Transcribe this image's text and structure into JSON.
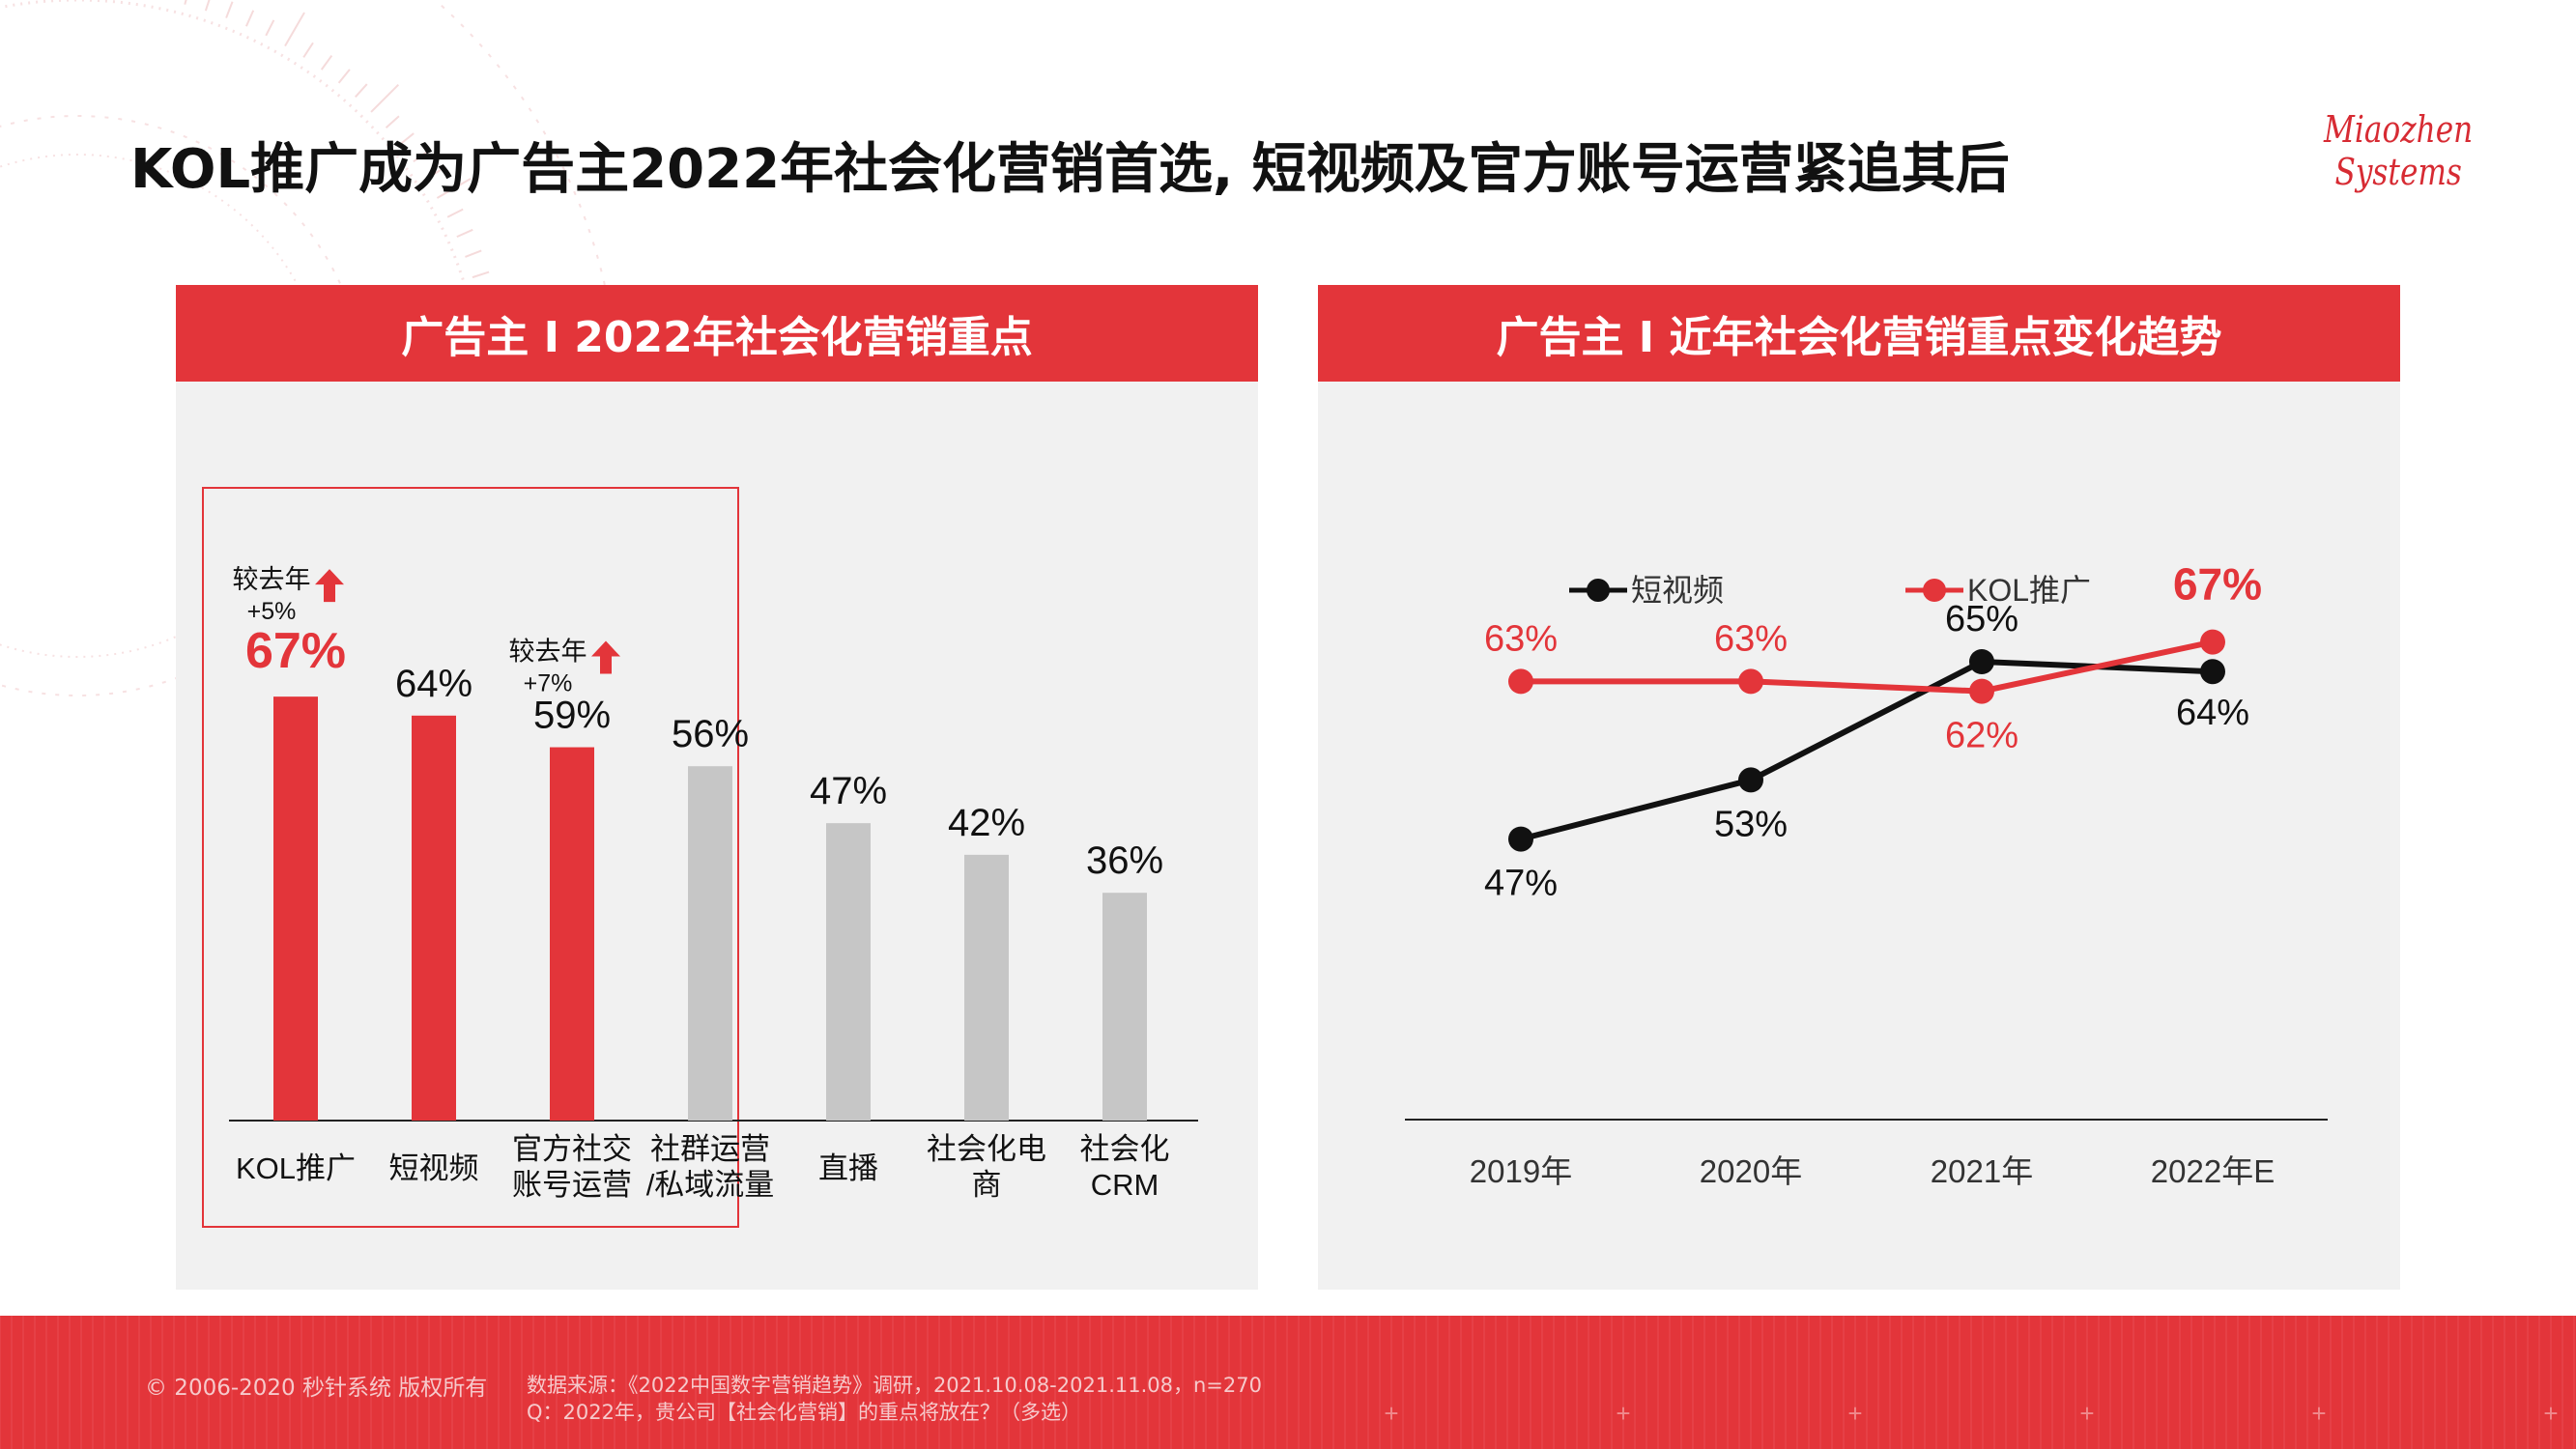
{
  "title": "KOL推广成为广告主2022年社会化营销首选, 短视频及官方账号运营紧追其后",
  "logo": {
    "line1": "Miaozhen",
    "line2": "Systems"
  },
  "colors": {
    "accent": "#e3353a",
    "gray_bar": "#c6c6c6",
    "black_line": "#111111"
  },
  "left_panel": {
    "header": "广告主 I 2022年社会化营销重点"
  },
  "right_panel": {
    "header": "广告主 I 近年社会化营销重点变化趋势"
  },
  "chart_data": [
    {
      "type": "bar",
      "categories": [
        "KOL推广",
        "短视频",
        "官方社交账号运营",
        "社群运营/私域流量",
        "直播",
        "社会化电商",
        "社会化CRM"
      ],
      "category_lines": [
        [
          "KOL推广"
        ],
        [
          "短视频"
        ],
        [
          "官方社交",
          "账号运营"
        ],
        [
          "社群运营",
          "/私域流量"
        ],
        [
          "直播"
        ],
        [
          "社会化电",
          "商"
        ],
        [
          "社会化",
          "CRM"
        ]
      ],
      "values": [
        67,
        64,
        59,
        56,
        47,
        42,
        36
      ],
      "value_labels": [
        "67%",
        "64%",
        "59%",
        "56%",
        "47%",
        "42%",
        "36%"
      ],
      "highlighted": [
        true,
        true,
        true,
        false,
        false,
        false,
        false
      ],
      "annotations": [
        {
          "category": "KOL推广",
          "line1": "较去年",
          "line2": "+5%",
          "icon": "up-arrow-icon"
        },
        {
          "category": "官方社交账号运营",
          "line1": "较去年",
          "line2": "+7%",
          "icon": "up-arrow-icon"
        }
      ],
      "ylim": [
        0,
        100
      ]
    },
    {
      "type": "line",
      "x": [
        "2019年",
        "2020年",
        "2021年",
        "2022年E"
      ],
      "series": [
        {
          "name": "短视频",
          "color": "#111111",
          "values": [
            47,
            53,
            65,
            64
          ],
          "labels": [
            "47%",
            "53%",
            "65%",
            "64%"
          ]
        },
        {
          "name": "KOL推广",
          "color": "#e3353a",
          "values": [
            63,
            63,
            62,
            67
          ],
          "labels": [
            "63%",
            "63%",
            "62%",
            "67%"
          ]
        }
      ],
      "ylim": [
        40,
        70
      ],
      "legend": "top"
    }
  ],
  "footer": {
    "copyright": "© 2006-2020 秒针系统 版权所有",
    "source_line1": "数据来源：《2022中国数字营销趋势》调研，2021.10.08-2021.11.08，n=270",
    "source_line2": "Q：2022年，贵公司【社会化营销】的重点将放在？（多选）"
  }
}
